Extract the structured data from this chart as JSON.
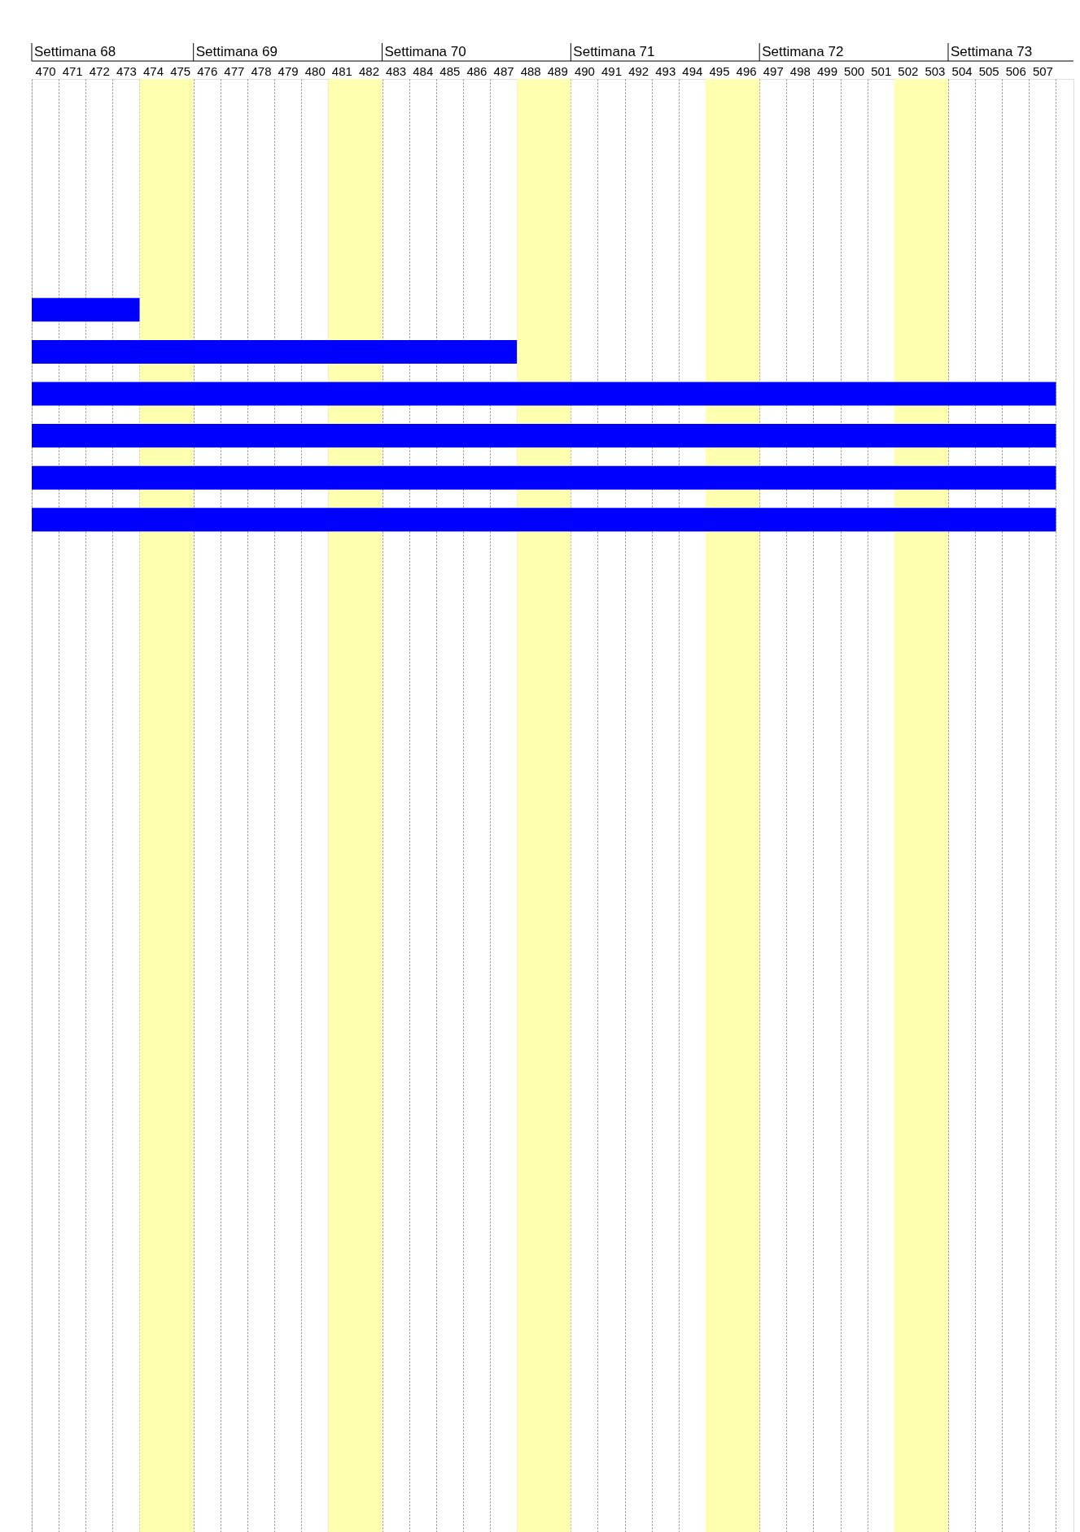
{
  "chart_data": {
    "type": "bar",
    "orientation": "horizontal",
    "categories": [
      null,
      null,
      null,
      null,
      null,
      null,
      null,
      null,
      null,
      null,
      null,
      null,
      null,
      null,
      null,
      null,
      null,
      null,
      null,
      null,
      null,
      null,
      null,
      null,
      null,
      null,
      null,
      null,
      null,
      null,
      null,
      null,
      null,
      null,
      null
    ],
    "base": [
      null,
      null,
      null,
      null,
      null,
      470,
      470,
      470,
      470,
      470,
      470,
      null,
      null,
      null,
      null,
      null,
      null,
      null,
      null,
      null,
      null,
      null,
      null,
      null,
      null,
      null,
      null,
      null,
      null,
      null,
      null,
      null,
      null,
      null,
      null
    ],
    "values": [
      null,
      null,
      null,
      null,
      null,
      4,
      18,
      38,
      38,
      38,
      38,
      null,
      null,
      null,
      null,
      null,
      null,
      null,
      null,
      null,
      null,
      null,
      null,
      null,
      null,
      null,
      null,
      null,
      null,
      null,
      null,
      null,
      null,
      null,
      null
    ],
    "color": "#0000ff",
    "xlim": [
      470,
      508.65
    ],
    "xticks": [
      {
        "value": 470.5,
        "label": "470"
      },
      {
        "value": 471.5,
        "label": "471"
      },
      {
        "value": 472.5,
        "label": "472"
      },
      {
        "value": 473.5,
        "label": "473"
      },
      {
        "value": 474.5,
        "label": "474"
      },
      {
        "value": 475.5,
        "label": "475"
      },
      {
        "value": 476.5,
        "label": "476"
      },
      {
        "value": 477.5,
        "label": "477"
      },
      {
        "value": 478.5,
        "label": "478"
      },
      {
        "value": 479.5,
        "label": "479"
      },
      {
        "value": 480.5,
        "label": "480"
      },
      {
        "value": 481.5,
        "label": "481"
      },
      {
        "value": 482.5,
        "label": "482"
      },
      {
        "value": 483.5,
        "label": "483"
      },
      {
        "value": 484.5,
        "label": "484"
      },
      {
        "value": 485.5,
        "label": "485"
      },
      {
        "value": 486.5,
        "label": "486"
      },
      {
        "value": 487.5,
        "label": "487"
      },
      {
        "value": 488.5,
        "label": "488"
      },
      {
        "value": 489.5,
        "label": "489"
      },
      {
        "value": 490.5,
        "label": "490"
      },
      {
        "value": 491.5,
        "label": "491"
      },
      {
        "value": 492.5,
        "label": "492"
      },
      {
        "value": 493.5,
        "label": "493"
      },
      {
        "value": 494.5,
        "label": "494"
      },
      {
        "value": 495.5,
        "label": "495"
      },
      {
        "value": 496.5,
        "label": "496"
      },
      {
        "value": 497.5,
        "label": "497"
      },
      {
        "value": 498.5,
        "label": "498"
      },
      {
        "value": 499.5,
        "label": "499"
      },
      {
        "value": 500.5,
        "label": "500"
      },
      {
        "value": 501.5,
        "label": "501"
      },
      {
        "value": 502.5,
        "label": "502"
      },
      {
        "value": 503.5,
        "label": "503"
      },
      {
        "value": 504.5,
        "label": "504"
      },
      {
        "value": 505.5,
        "label": "505"
      },
      {
        "value": 506.5,
        "label": "506"
      },
      {
        "value": 507.5,
        "label": "507"
      }
    ],
    "annotations": [
      "Settimana 68",
      "Settimana 69",
      "Settimana 70",
      "Settimana 71",
      "Settimana 72",
      "Settimana 73"
    ],
    "bands": [
      {
        "axis": "x",
        "from": 474,
        "to": 476,
        "color": "#ffffb0"
      },
      {
        "axis": "x",
        "from": 481,
        "to": 483,
        "color": "#ffffb0"
      },
      {
        "axis": "x",
        "from": 488,
        "to": 490,
        "color": "#ffffb0"
      },
      {
        "axis": "x",
        "from": 495,
        "to": 497,
        "color": "#ffffb0"
      },
      {
        "axis": "x",
        "from": 502,
        "to": 504,
        "color": "#ffffb0"
      }
    ],
    "grid": true,
    "tick_labels": "x"
  }
}
